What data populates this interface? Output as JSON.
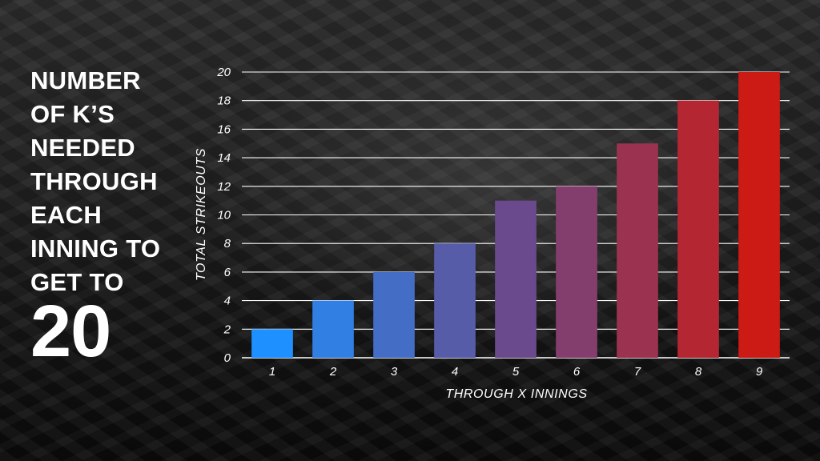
{
  "headline": {
    "lines": [
      "NUMBER",
      "OF K’S",
      "NEEDED",
      "THROUGH",
      "EACH",
      "INNING TO",
      "GET TO"
    ],
    "big_number": "20"
  },
  "chart_data": {
    "type": "bar",
    "categories": [
      "1",
      "2",
      "3",
      "4",
      "5",
      "6",
      "7",
      "8",
      "9"
    ],
    "values": [
      2,
      4,
      6,
      8,
      11,
      12,
      15,
      18,
      20
    ],
    "title": "",
    "xlabel": "THROUGH X INNINGS",
    "ylabel": "TOTAL STRIKEOUTS",
    "ylim": [
      0,
      20
    ],
    "yticks": [
      0,
      2,
      4,
      6,
      8,
      10,
      12,
      14,
      16,
      18,
      20
    ],
    "grid": true,
    "colors": {
      "bar_start": "#1e90ff",
      "bar_mid": "#6a4a8c",
      "bar_end": "#cc1a14",
      "grid": "#ffffff",
      "text": "#ffffff"
    }
  }
}
